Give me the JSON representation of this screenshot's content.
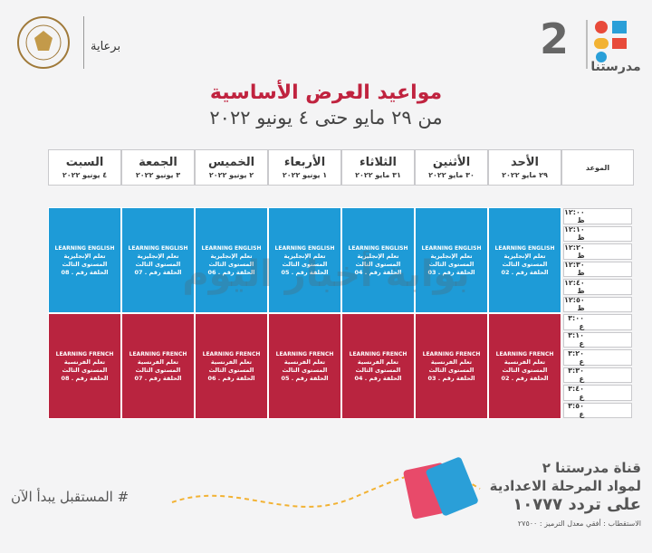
{
  "header": {
    "brand": "مدرستنا",
    "brand_number": "2",
    "sponsor": "برعاية"
  },
  "title": "مواعيد العرض الأساسية",
  "subtitle": "من ٢٩ مايو حتى ٤ يونيو ٢٠٢٢",
  "table": {
    "time_header": "الموعد",
    "days": [
      {
        "name": "الأحد",
        "date": "٢٩ مايو ٢٠٢٢"
      },
      {
        "name": "الأثنين",
        "date": "٣٠ مايو ٢٠٢٢"
      },
      {
        "name": "الثلاثاء",
        "date": "٣١ مايو ٢٠٢٢"
      },
      {
        "name": "الأربعاء",
        "date": "١ يونيو ٢٠٢٢"
      },
      {
        "name": "الخميس",
        "date": "٢ يونيو ٢٠٢٢"
      },
      {
        "name": "الجمعة",
        "date": "٣ يونيو ٢٠٢٢"
      },
      {
        "name": "السبت",
        "date": "٤ يونيو ٢٠٢٢"
      }
    ],
    "times": [
      "١٢:٠٠ ظ",
      "١٢:١٠ ظ",
      "١٢:٢٠ ظ",
      "١٢:٣٠ ظ",
      "١٢:٤٠ ظ",
      "١٢:٥٠ ظ",
      "٣:٠٠ ع",
      "٣:١٠ ع",
      "٣:٢٠ ع",
      "٣:٣٠ ع",
      "٣:٤٠ ع",
      "٣:٥٠ ع"
    ],
    "blocks": [
      {
        "title": "LEARNING ENGLISH",
        "subject": "تعلم الإنجليزية",
        "level": "المستوى الثالث",
        "color": "#1e9bd7",
        "episodes": [
          "الحلقة رقم . 02",
          "الحلقة رقم . 03",
          "الحلقة رقم . 04",
          "الحلقة رقم . 05",
          "الحلقة رقم . 06",
          "الحلقة رقم . 07",
          "الحلقة رقم . 08"
        ]
      },
      {
        "title": "LEARNING FRENCH",
        "subject": "تعلم الفرنسية",
        "level": "المستوى الثالث",
        "color": "#b9243f",
        "episodes": [
          "الحلقة رقم . 02",
          "الحلقة رقم . 03",
          "الحلقة رقم . 04",
          "الحلقة رقم . 05",
          "الحلقة رقم . 06",
          "الحلقة رقم . 07",
          "الحلقة رقم . 08"
        ]
      }
    ]
  },
  "watermark": "بوابة أخبار اليوم",
  "footer": {
    "channel": "قناة مدرستنا ٢",
    "subject": "لمواد المرحلة الاعدادية",
    "frequency": "على تردد ١٠٧٧٧",
    "polarization": "الاستقطاب : أفقي معدل الترميز : ٢٧٥٠٠",
    "slogan": "# المستقبل يبدأ الآن"
  }
}
